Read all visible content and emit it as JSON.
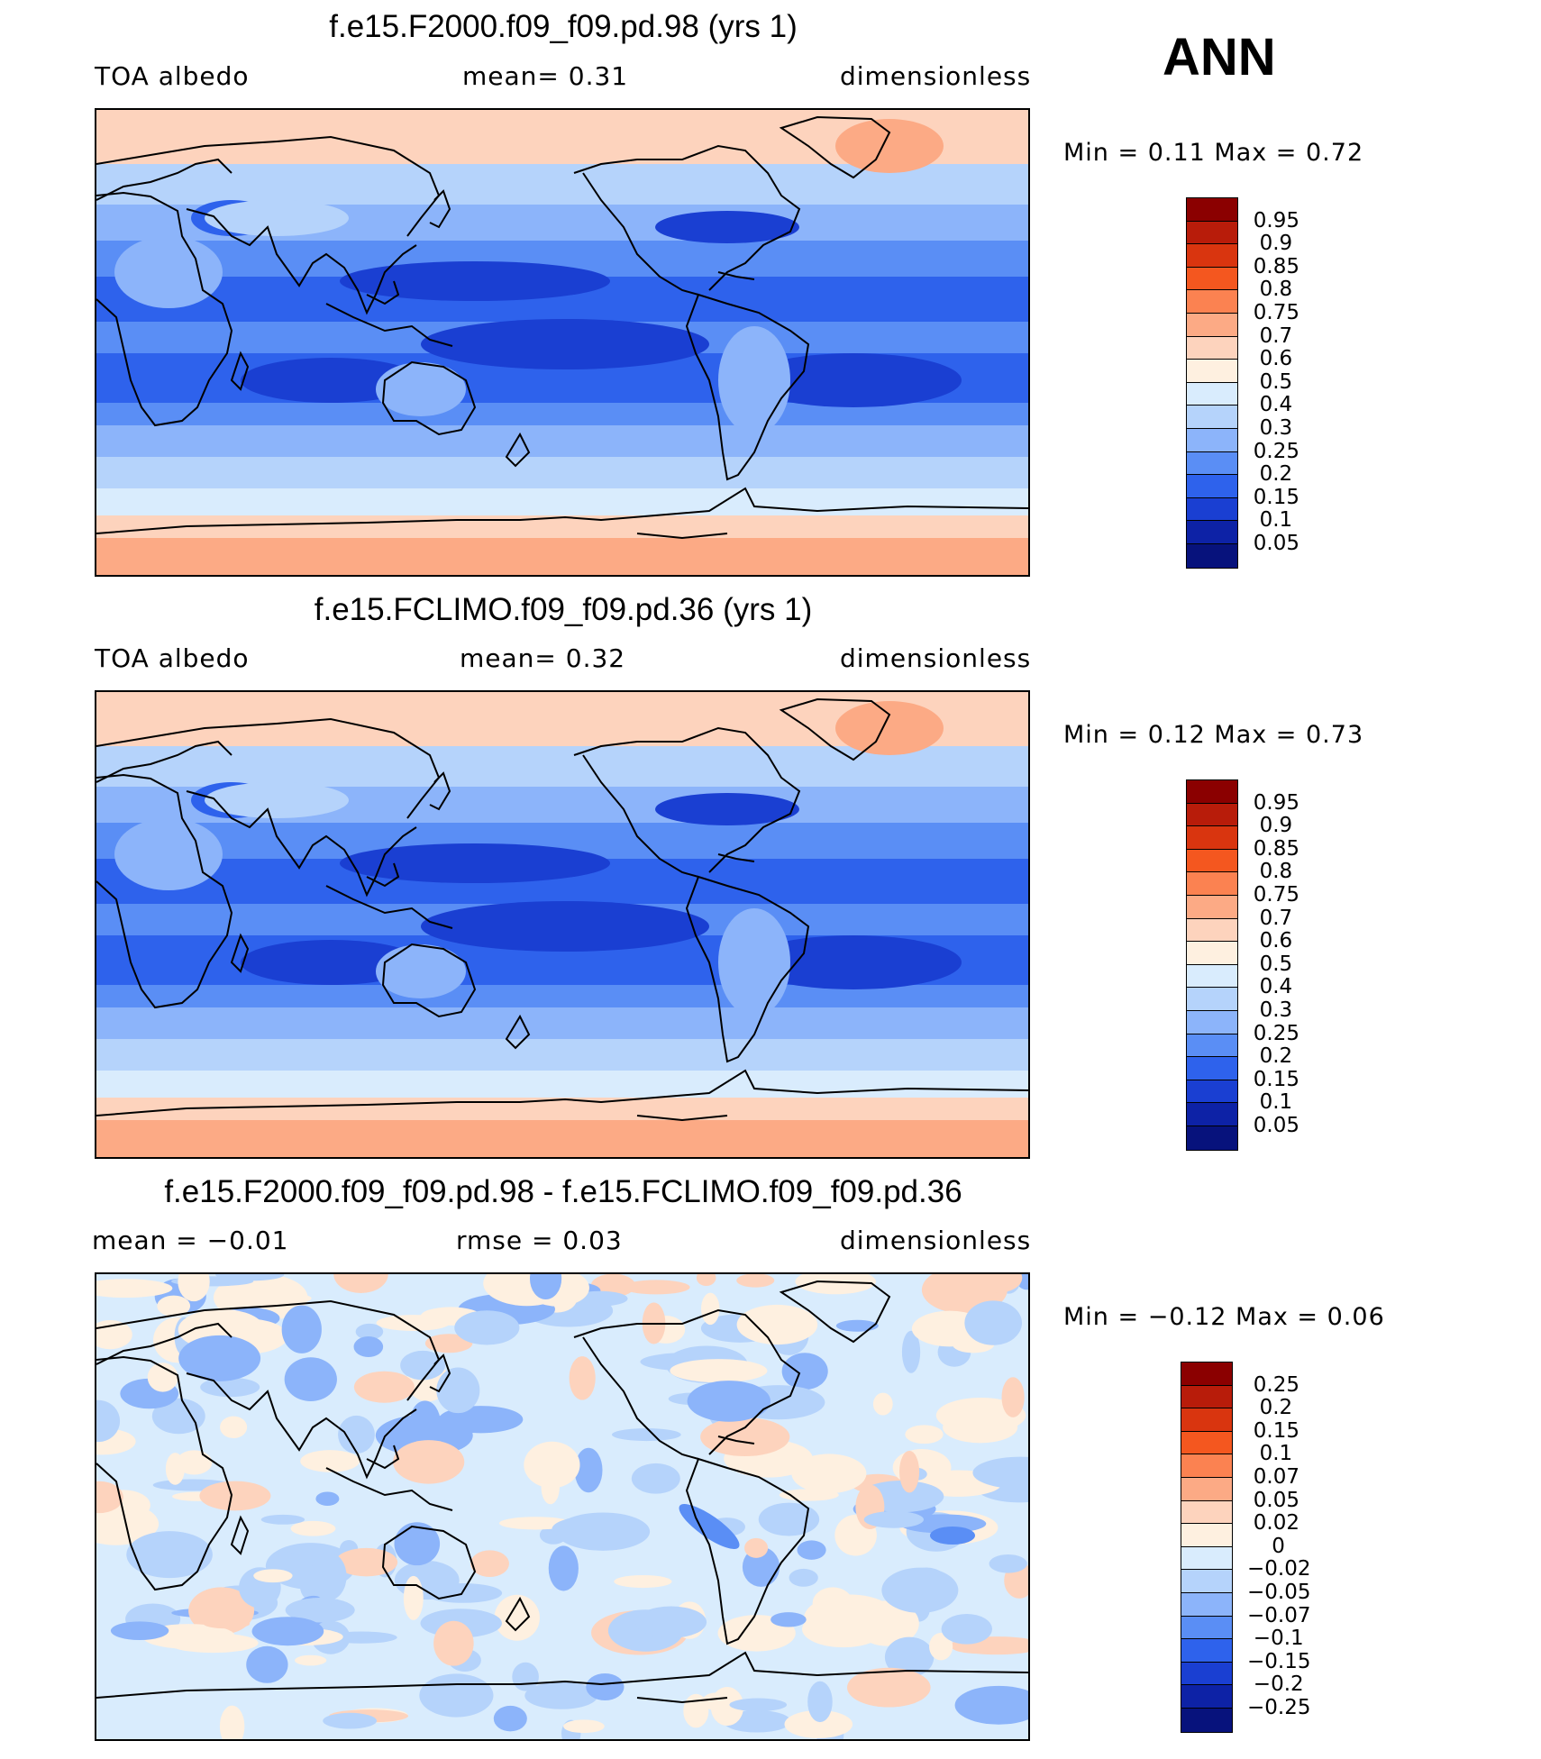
{
  "season": "ANN",
  "panels": [
    {
      "title": "f.e15.F2000.f09_f09.pd.98 (yrs 1)",
      "left_label": "TOA  albedo",
      "center_label": "mean=    0.31",
      "right_label": "dimensionless",
      "minmax": "Min  =     0.11  Max  =     0.72",
      "colorbar_labels": [
        "0.95",
        "0.9",
        "0.85",
        "0.8",
        "0.75",
        "0.7",
        "0.6",
        "0.5",
        "0.4",
        "0.3",
        "0.25",
        "0.2",
        "0.15",
        "0.1",
        "0.05"
      ],
      "colorbar_colors": [
        "#8b0000",
        "#b81c0a",
        "#d9350f",
        "#f4571f",
        "#fb8251",
        "#fcaa85",
        "#fdd3bd",
        "#fef0e0",
        "#d9ecfd",
        "#b5d3fb",
        "#8cb4fa",
        "#5a8ef5",
        "#2e62ec",
        "#1a3fd2",
        "#0d22a6",
        "#07127c"
      ]
    },
    {
      "title": "f.e15.FCLIMO.f09_f09.pd.36 (yrs 1)",
      "left_label": "TOA  albedo",
      "center_label": "mean=    0.32",
      "right_label": "dimensionless",
      "minmax": "Min  =     0.12  Max  =     0.73",
      "colorbar_labels": [
        "0.95",
        "0.9",
        "0.85",
        "0.8",
        "0.75",
        "0.7",
        "0.6",
        "0.5",
        "0.4",
        "0.3",
        "0.25",
        "0.2",
        "0.15",
        "0.1",
        "0.05"
      ],
      "colorbar_colors": [
        "#8b0000",
        "#b81c0a",
        "#d9350f",
        "#f4571f",
        "#fb8251",
        "#fcaa85",
        "#fdd3bd",
        "#fef0e0",
        "#d9ecfd",
        "#b5d3fb",
        "#8cb4fa",
        "#5a8ef5",
        "#2e62ec",
        "#1a3fd2",
        "#0d22a6",
        "#07127c"
      ]
    },
    {
      "title": "f.e15.F2000.f09_f09.pd.98 - f.e15.FCLIMO.f09_f09.pd.36",
      "left_label": "mean  =    −0.01",
      "center_label": "rmse  =     0.03",
      "right_label": "dimensionless",
      "minmax": "Min  =    −0.12  Max  =     0.06",
      "colorbar_labels": [
        "0.25",
        "0.2",
        "0.15",
        "0.1",
        "0.07",
        "0.05",
        "0.02",
        "0",
        "−0.02",
        "−0.05",
        "−0.07",
        "−0.1",
        "−0.15",
        "−0.2",
        "−0.25"
      ],
      "colorbar_colors": [
        "#8b0000",
        "#b81c0a",
        "#d9350f",
        "#f4571f",
        "#fb8251",
        "#fcaa85",
        "#fdd3bd",
        "#fef0e0",
        "#d9ecfd",
        "#b5d3fb",
        "#8cb4fa",
        "#5a8ef5",
        "#2e62ec",
        "#1a3fd2",
        "#0d22a6",
        "#07127c"
      ]
    }
  ]
}
